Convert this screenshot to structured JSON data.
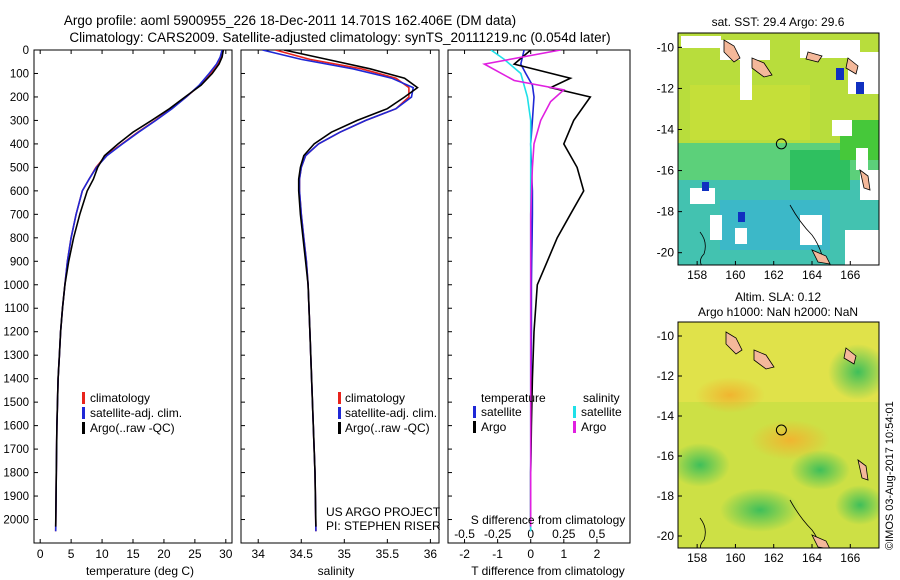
{
  "title": {
    "line1": "Argo profile: aoml 5900955_226 18-Dec-2011 14.701S 162.406E (DM data)",
    "line2": "Climatology: CARS2009. Satellite-adjusted climatology: synTS_20111219.nc (0.054d later)"
  },
  "colors": {
    "climatology": "#e8231c",
    "satellite": "#1f28d6",
    "argo": "#000000",
    "sal_satellite": "#1fe0e8",
    "sal_argo": "#e020e0"
  },
  "chart_data": [
    {
      "type": "line",
      "panel": "temperature",
      "xlabel": "temperature (deg C)",
      "ylabel": "",
      "xlim": [
        -1,
        31
      ],
      "ylim": [
        2100,
        0
      ],
      "xticks": [
        0,
        5,
        10,
        15,
        20,
        25,
        30
      ],
      "yticks": [
        0,
        100,
        200,
        300,
        400,
        500,
        600,
        700,
        800,
        900,
        1000,
        1100,
        1200,
        1300,
        1400,
        1500,
        1600,
        1700,
        1800,
        1900,
        2000
      ],
      "legend": [
        "climatology",
        "satellite-adj. clim.",
        "Argo(..raw -QC)"
      ],
      "legend_position": "lower-middle",
      "series": [
        {
          "name": "climatology",
          "color_key": "climatology",
          "x": [
            29.6,
            29.3,
            28.7,
            27.5,
            25.8,
            23.6,
            21.2,
            18.6,
            15.8,
            13.2,
            10.6,
            9.0,
            7.9,
            6.8,
            5.8,
            5.0,
            4.4,
            4.0,
            3.6,
            3.3,
            3.1,
            2.9,
            2.7,
            2.6,
            2.5
          ],
          "y": [
            0,
            30,
            60,
            100,
            150,
            200,
            250,
            300,
            350,
            400,
            450,
            500,
            550,
            600,
            700,
            800,
            900,
            1000,
            1100,
            1200,
            1300,
            1400,
            1600,
            1800,
            2050
          ]
        },
        {
          "name": "satellite-adj. clim.",
          "color_key": "satellite",
          "x": [
            29.4,
            29.1,
            28.5,
            27.3,
            25.7,
            23.6,
            21.3,
            18.7,
            15.9,
            13.3,
            10.8,
            9.1,
            7.9,
            6.8,
            5.8,
            5.0,
            4.4,
            4.0,
            3.6,
            3.3,
            3.1,
            2.9,
            2.7,
            2.6,
            2.5
          ],
          "y": [
            0,
            30,
            60,
            100,
            150,
            200,
            250,
            300,
            350,
            400,
            450,
            500,
            550,
            600,
            700,
            800,
            900,
            1000,
            1100,
            1200,
            1300,
            1400,
            1600,
            1800,
            2050
          ]
        },
        {
          "name": "Argo(..raw -QC)",
          "color_key": "argo",
          "x": [
            29.6,
            29.4,
            28.9,
            27.8,
            26.0,
            23.4,
            20.9,
            18.0,
            15.0,
            12.6,
            10.4,
            9.3,
            8.6,
            7.6,
            6.4,
            5.4,
            4.6,
            4.0,
            3.6,
            3.3,
            3.1,
            2.9,
            2.7,
            2.6,
            2.5
          ],
          "y": [
            0,
            30,
            60,
            100,
            150,
            200,
            250,
            300,
            350,
            400,
            450,
            500,
            550,
            600,
            700,
            800,
            900,
            1000,
            1100,
            1200,
            1300,
            1400,
            1600,
            1800,
            2030
          ]
        }
      ]
    },
    {
      "type": "line",
      "panel": "salinity",
      "xlabel": "salinity",
      "xlim": [
        33.8,
        36.1
      ],
      "ylim": [
        2100,
        0
      ],
      "xticks": [
        34,
        34.5,
        35,
        35.5,
        36
      ],
      "legend": [
        "climatology",
        "satellite-adj. clim.",
        "Argo(..raw -QC)"
      ],
      "legend_position": "lower-middle",
      "annotation": [
        "US ARGO PROJECT",
        "PI: STEPHEN RISER"
      ],
      "series": [
        {
          "name": "climatology",
          "color_key": "climatology",
          "x": [
            34.2,
            34.6,
            35.2,
            35.6,
            35.75,
            35.75,
            35.6,
            35.25,
            34.95,
            34.7,
            34.55,
            34.5,
            34.48,
            34.48,
            34.5,
            34.53,
            34.56,
            34.58,
            34.6,
            34.62,
            34.64,
            34.66,
            34.67
          ],
          "y": [
            0,
            40,
            80,
            120,
            160,
            200,
            250,
            300,
            350,
            400,
            450,
            500,
            550,
            600,
            700,
            800,
            900,
            1000,
            1200,
            1400,
            1600,
            1800,
            2050
          ]
        },
        {
          "name": "satellite-adj. clim.",
          "color_key": "satellite",
          "x": [
            34.05,
            34.5,
            35.1,
            35.55,
            35.8,
            35.78,
            35.6,
            35.25,
            34.95,
            34.7,
            34.55,
            34.5,
            34.48,
            34.48,
            34.5,
            34.53,
            34.56,
            34.58,
            34.6,
            34.62,
            34.64,
            34.66,
            34.67
          ],
          "y": [
            0,
            40,
            80,
            120,
            160,
            200,
            250,
            300,
            350,
            400,
            450,
            500,
            550,
            600,
            700,
            800,
            900,
            1000,
            1200,
            1400,
            1600,
            1800,
            2050
          ]
        },
        {
          "name": "Argo(..raw -QC)",
          "color_key": "argo",
          "x": [
            34.3,
            34.8,
            35.3,
            35.7,
            35.85,
            35.7,
            35.5,
            35.15,
            34.85,
            34.65,
            34.53,
            34.49,
            34.47,
            34.47,
            34.49,
            34.52,
            34.55,
            34.58,
            34.6,
            34.62,
            34.64,
            34.66,
            34.67
          ],
          "y": [
            0,
            40,
            80,
            120,
            160,
            200,
            250,
            300,
            350,
            400,
            450,
            500,
            550,
            600,
            700,
            800,
            900,
            1000,
            1200,
            1400,
            1600,
            1800,
            2030
          ]
        }
      ]
    },
    {
      "type": "line",
      "panel": "difference",
      "xlabel": "T difference from climatology",
      "xlabel2": "S difference from climatology",
      "xlim": [
        -2.5,
        3
      ],
      "ylim": [
        2100,
        0
      ],
      "xticks": [
        -2,
        -1,
        0,
        1,
        2
      ],
      "xticks_top_labels": [
        "-0.5",
        "-0.25",
        "0",
        "0.25",
        "0.5"
      ],
      "xticks_top_pos": [
        -2,
        -1,
        0,
        1,
        2
      ],
      "legend_temperature": {
        "title": "temperature",
        "items": [
          "satellite",
          "Argo"
        ]
      },
      "legend_salinity": {
        "title": "salinity",
        "items": [
          "satellite",
          "Argo"
        ]
      },
      "series": [
        {
          "name": "T satellite",
          "color_key": "satellite",
          "x": [
            -0.2,
            -0.3,
            -0.15,
            0.05,
            0.1,
            0.05,
            0.0,
            0.02,
            0.05,
            0.05,
            0.04,
            0.03,
            0.02,
            0.02,
            0.01,
            0.01,
            0.0,
            0.0
          ],
          "y": [
            0,
            60,
            100,
            150,
            200,
            300,
            400,
            500,
            600,
            700,
            800,
            900,
            1000,
            1200,
            1400,
            1600,
            1800,
            2050
          ]
        },
        {
          "name": "T Argo",
          "color_key": "argo",
          "x": [
            0.0,
            -0.5,
            1.2,
            0.6,
            1.8,
            1.3,
            1.0,
            1.4,
            1.6,
            1.2,
            0.8,
            0.5,
            0.2,
            0.1,
            0.05,
            0.02,
            0.0,
            0.0
          ],
          "y": [
            0,
            60,
            120,
            160,
            200,
            300,
            400,
            500,
            600,
            700,
            800,
            900,
            1000,
            1200,
            1400,
            1600,
            1800,
            2030
          ]
        },
        {
          "name": "S satellite",
          "color_key": "sal_satellite",
          "x": [
            -1.2,
            -0.8,
            -0.3,
            -0.1,
            0.0,
            0.0,
            0.0,
            0.0,
            0.0,
            0.0,
            0.0,
            0.0
          ],
          "y": [
            0,
            40,
            100,
            200,
            300,
            500,
            700,
            900,
            1200,
            1500,
            1800,
            2050
          ]
        },
        {
          "name": "S Argo",
          "color_key": "sal_argo",
          "x": [
            0.9,
            -1.4,
            -0.5,
            1.0,
            0.6,
            0.3,
            0.1,
            0.05,
            0.0,
            0.0,
            0.0,
            0.0
          ],
          "y": [
            0,
            60,
            130,
            170,
            220,
            300,
            400,
            500,
            700,
            1000,
            1500,
            2030
          ]
        }
      ]
    },
    {
      "type": "heatmap",
      "panel": "sst-map",
      "title": "sat. SST: 29.4 Argo: 29.6",
      "xticks": [
        158,
        160,
        162,
        164,
        166
      ],
      "yticks": [
        -10,
        -12,
        -14,
        -16,
        -18,
        -20
      ],
      "xlim": [
        157,
        167.5
      ],
      "ylim": [
        -20.6,
        -9.3
      ],
      "marker": {
        "lon": 162.4,
        "lat": -14.7
      }
    },
    {
      "type": "heatmap",
      "panel": "sla-map",
      "title": "Altim. SLA: 0.12",
      "subtitle": "Argo h1000: NaN h2000: NaN",
      "xticks": [
        158,
        160,
        162,
        164,
        166
      ],
      "yticks": [
        -10,
        -12,
        -14,
        -16,
        -18,
        -20
      ],
      "xlim": [
        157,
        167.5
      ],
      "ylim": [
        -20.6,
        -9.3
      ],
      "marker": {
        "lon": 162.4,
        "lat": -14.7
      }
    }
  ],
  "credit": "©IMOS 03-Aug-2017 10:54:01"
}
